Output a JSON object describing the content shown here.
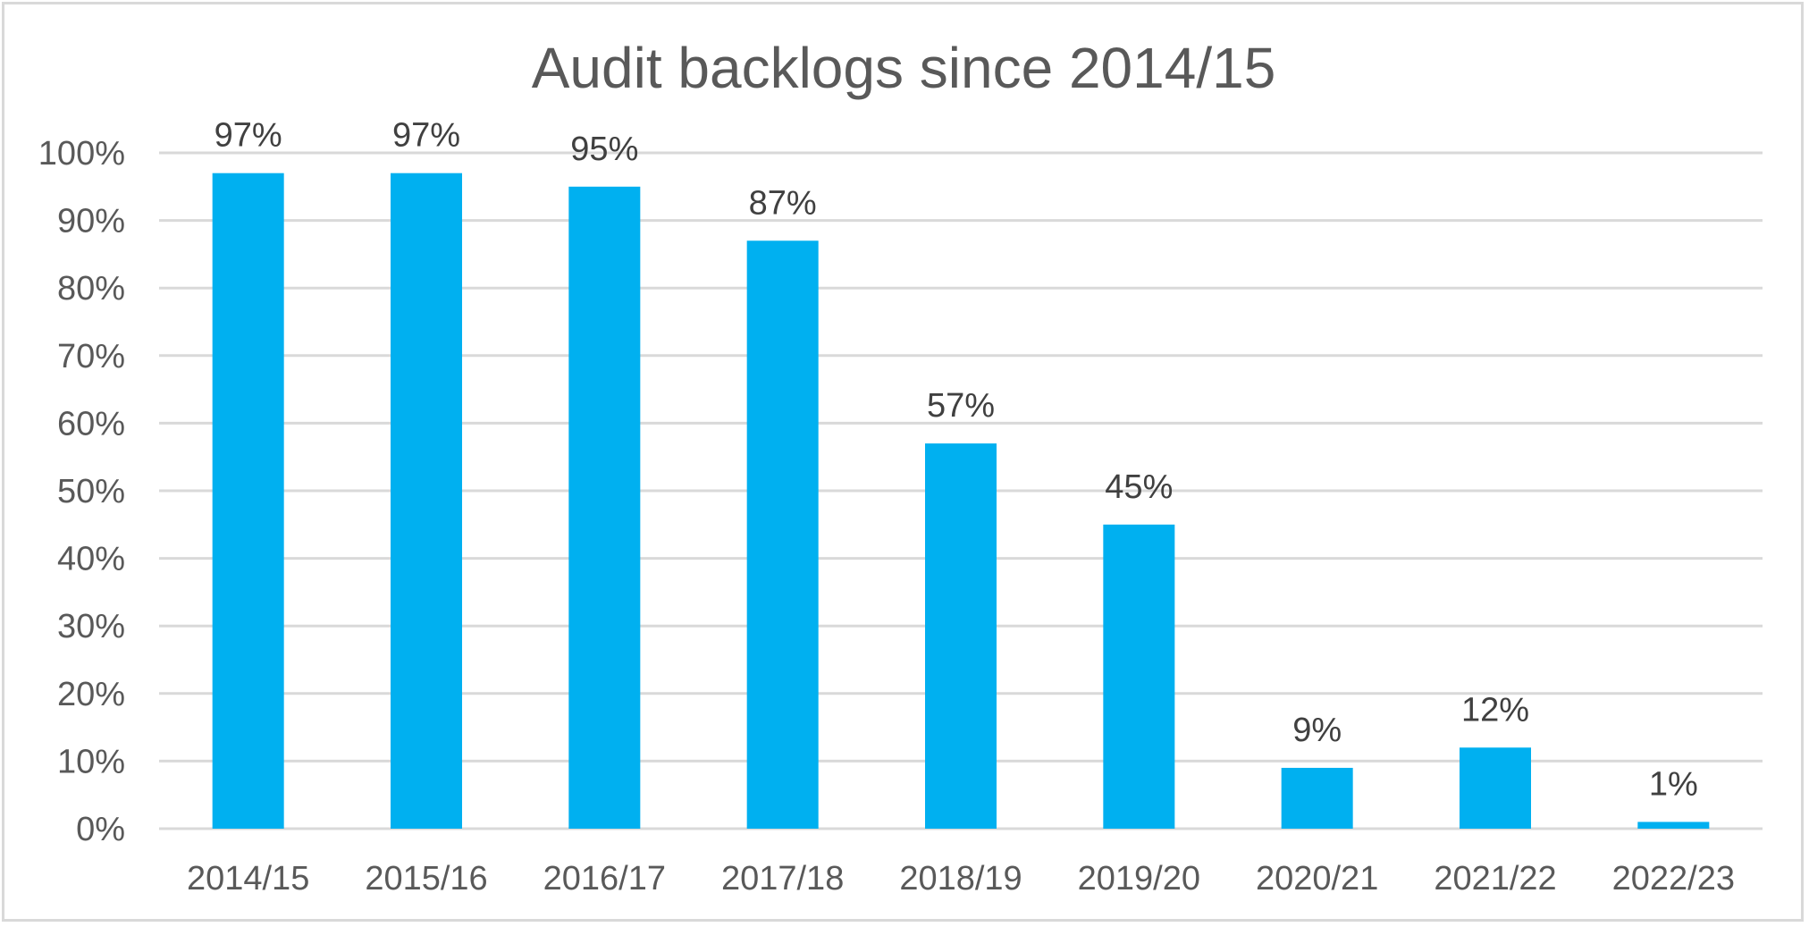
{
  "chart_data": {
    "type": "bar",
    "title": "Audit backlogs since 2014/15",
    "xlabel": "",
    "ylabel": "",
    "categories": [
      "2014/15",
      "2015/16",
      "2016/17",
      "2017/18",
      "2018/19",
      "2019/20",
      "2020/21",
      "2021/22",
      "2022/23"
    ],
    "values": [
      97,
      97,
      95,
      87,
      57,
      45,
      9,
      12,
      1
    ],
    "data_labels": [
      "97%",
      "97%",
      "95%",
      "87%",
      "57%",
      "45%",
      "9%",
      "12%",
      "1%"
    ],
    "ylim": [
      0,
      100
    ],
    "yticks": [
      "0%",
      "10%",
      "20%",
      "30%",
      "40%",
      "50%",
      "60%",
      "70%",
      "80%",
      "90%",
      "100%"
    ],
    "grid": true,
    "legend": "none",
    "bar_color": "#00B0F0",
    "grid_color": "#d9d9d9"
  }
}
